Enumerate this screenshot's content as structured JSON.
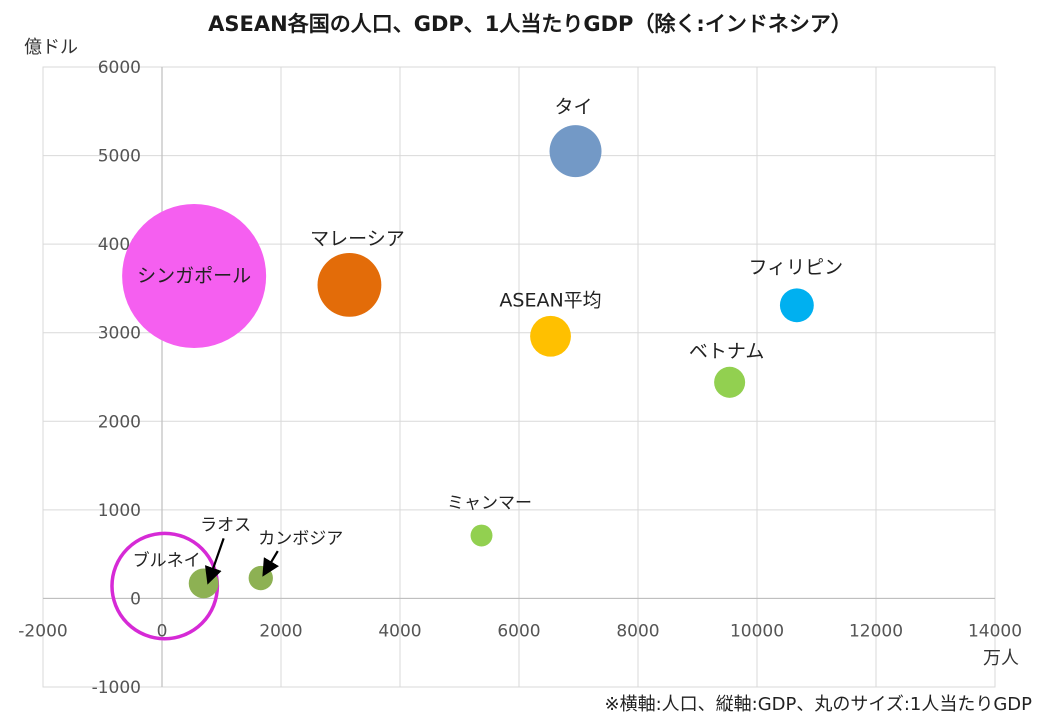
{
  "chart_data": {
    "type": "scatter",
    "title": "ASEAN各国の人口、GDP、1人当たりGDP（除く:インドネシア）",
    "ylabel": "億ドル",
    "xlabel": "万人",
    "xlim": [
      -2000,
      14000
    ],
    "ylim": [
      -1000,
      6000
    ],
    "x_ticks": [
      -2000,
      0,
      2000,
      4000,
      6000,
      8000,
      10000,
      12000,
      14000
    ],
    "y_ticks": [
      -1000,
      0,
      1000,
      2000,
      3000,
      4000,
      5000,
      6000
    ],
    "grid": true,
    "note": "※横軸:人口、縦軸:GDP、丸のサイズ:1人当たりGDP",
    "points": [
      {
        "label": "シンガポール",
        "x": 540,
        "y": 3640,
        "size": 56000,
        "color": "#f55ff0"
      },
      {
        "label": "マレーシア",
        "x": 3150,
        "y": 3540,
        "size": 11000,
        "color": "#e36c09"
      },
      {
        "label": "タイ",
        "x": 6950,
        "y": 5050,
        "size": 7300,
        "color": "#7399c6"
      },
      {
        "label": "ASEAN平均",
        "x": 6530,
        "y": 2960,
        "size": 4500,
        "color": "#ffc000"
      },
      {
        "label": "フィリピン",
        "x": 10670,
        "y": 3310,
        "size": 3100,
        "color": "#00b0f0"
      },
      {
        "label": "ベトナム",
        "x": 9540,
        "y": 2440,
        "size": 2600,
        "color": "#92d050"
      },
      {
        "label": "ミャンマー",
        "x": 5370,
        "y": 710,
        "size": 1300,
        "color": "#92d050"
      },
      {
        "label": "ラオス",
        "x": 700,
        "y": 170,
        "size": 2400,
        "color": "#8db153"
      },
      {
        "label": "カンボジア",
        "x": 1660,
        "y": 230,
        "size": 1600,
        "color": "#8db153"
      },
      {
        "label": "ブルネイ",
        "x": 45,
        "y": 140,
        "size": 30000,
        "color": "none",
        "ring_color": "#d62ad6"
      }
    ]
  }
}
